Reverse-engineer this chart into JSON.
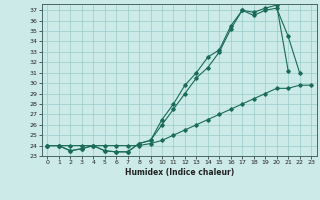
{
  "title": "",
  "xlabel": "Humidex (Indice chaleur)",
  "bg_color": "#cceae8",
  "grid_color": "#99cccc",
  "line_color": "#1a6b5a",
  "xlim": [
    -0.5,
    23.5
  ],
  "ylim": [
    23,
    37.6
  ],
  "xticks": [
    0,
    1,
    2,
    3,
    4,
    5,
    6,
    7,
    8,
    9,
    10,
    11,
    12,
    13,
    14,
    15,
    16,
    17,
    18,
    19,
    20,
    21,
    22,
    23
  ],
  "yticks": [
    23,
    24,
    25,
    26,
    27,
    28,
    29,
    30,
    31,
    32,
    33,
    34,
    35,
    36,
    37
  ],
  "line1_x": [
    0,
    1,
    2,
    3,
    4,
    5,
    6,
    7,
    8,
    9,
    10,
    11,
    12,
    13,
    14,
    15,
    16,
    17,
    18,
    19,
    20,
    21
  ],
  "line1_y": [
    24.0,
    24.0,
    23.5,
    23.7,
    24.0,
    23.5,
    23.4,
    23.4,
    24.2,
    24.5,
    26.5,
    28.0,
    29.8,
    31.0,
    32.5,
    33.2,
    35.5,
    37.0,
    36.8,
    37.2,
    37.5,
    31.2
  ],
  "line2_x": [
    0,
    1,
    2,
    3,
    4,
    5,
    6,
    7,
    8,
    9,
    10,
    11,
    12,
    13,
    14,
    15,
    16,
    17,
    18,
    19,
    20,
    21,
    22
  ],
  "line2_y": [
    24.0,
    24.0,
    23.5,
    23.7,
    24.0,
    23.5,
    23.4,
    23.4,
    24.2,
    24.5,
    26.0,
    27.5,
    29.0,
    30.5,
    31.5,
    33.0,
    35.2,
    37.0,
    36.5,
    37.0,
    37.2,
    34.5,
    31.0
  ],
  "line3_x": [
    0,
    1,
    2,
    3,
    4,
    5,
    6,
    7,
    8,
    9,
    10,
    11,
    12,
    13,
    14,
    15,
    16,
    17,
    18,
    19,
    20,
    21,
    22,
    23
  ],
  "line3_y": [
    24.0,
    24.0,
    24.0,
    24.0,
    24.0,
    24.0,
    24.0,
    24.0,
    24.0,
    24.2,
    24.5,
    25.0,
    25.5,
    26.0,
    26.5,
    27.0,
    27.5,
    28.0,
    28.5,
    29.0,
    29.5,
    29.5,
    29.8,
    29.8
  ]
}
